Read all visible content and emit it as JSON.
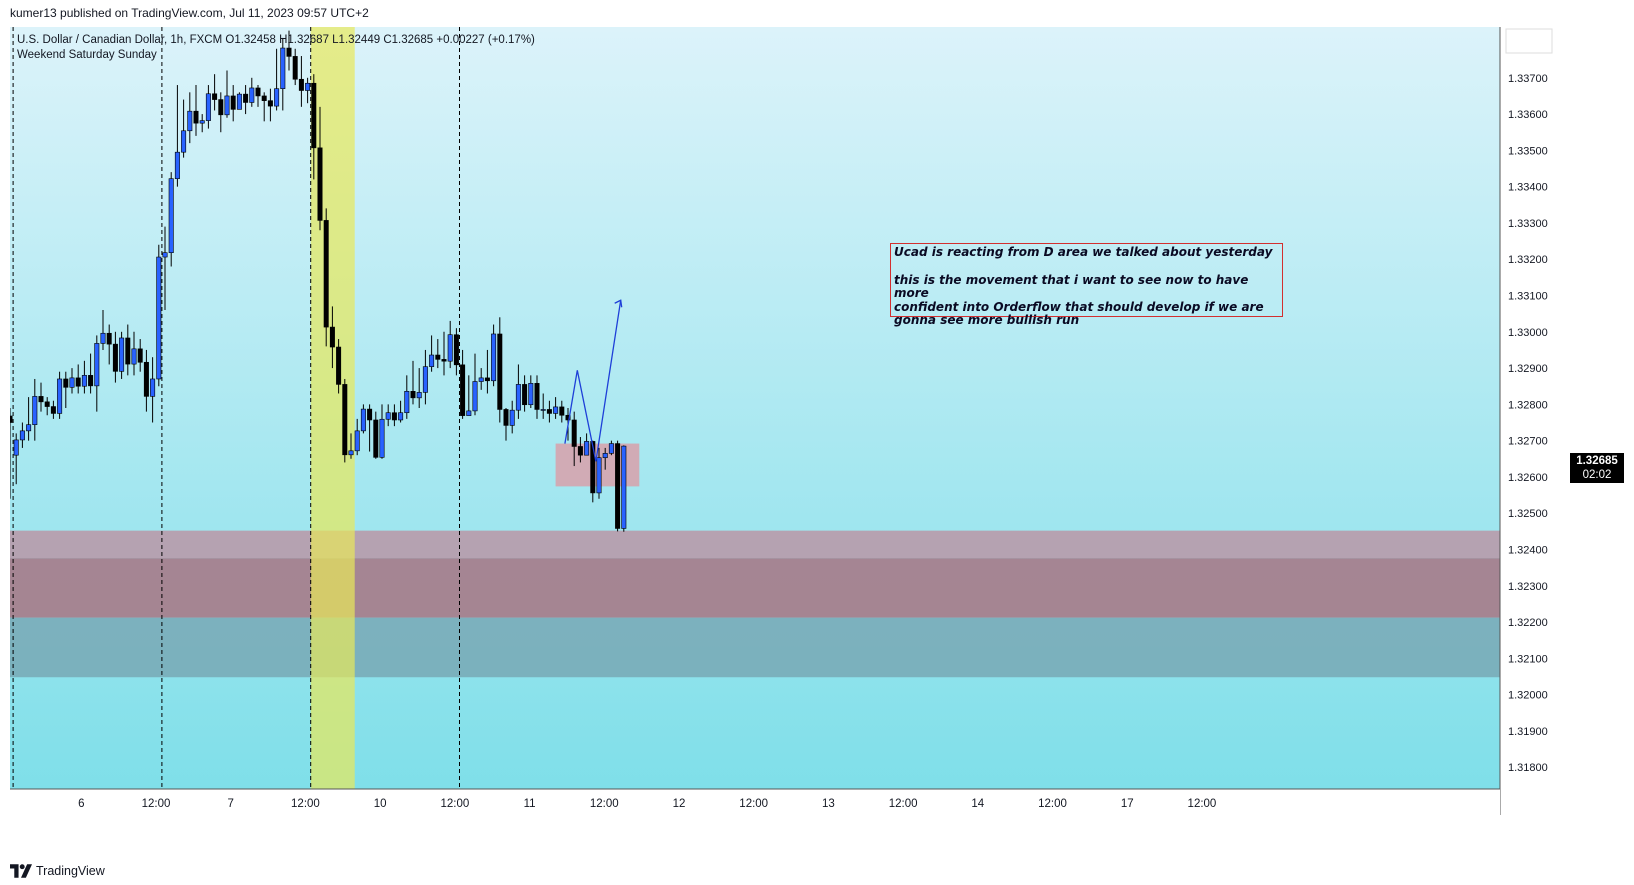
{
  "header": {
    "published": "kumer13 published on TradingView.com, Jul 11, 2023 09:57 UTC+2"
  },
  "legend": {
    "symbol": "U.S. Dollar / Canadian Dollar, 1h, FXCM",
    "ohlc": "O1.32458  H1.32687  L1.32449  C1.32685",
    "change": "+0.00227 (+0.17%)",
    "indicator": "Weekend Saturday Sunday"
  },
  "annotation": {
    "line1": "Ucad is reacting from D area we talked about yesterday",
    "line2": "this is the movement that i want to see now to have more",
    "line3": "confident into Orderflow that should develop if we are",
    "line4": "gonna see more bullish run"
  },
  "price_tag": {
    "price": "1.32685",
    "countdown": "02:02"
  },
  "footer": {
    "brand": "TradingView"
  },
  "colors": {
    "bull": "#2962ff",
    "bear": "#000000",
    "background_top": "#dcf3fa",
    "background_bottom": "#7fdfe9",
    "weekend_highlight": "#e8e85a",
    "zone_upper": "#b89aaa",
    "zone_middle": "#a5808d",
    "zone_lower": "#78a8b5",
    "small_box": "#d8a0aa",
    "projection": "#1e3fd8",
    "annotation_border": "#d32f2f"
  },
  "chart_data": {
    "type": "candlestick",
    "instrument": "U.S. Dollar / Canadian Dollar",
    "timeframe": "1h",
    "ylim": [
      1.3174,
      1.3384
    ],
    "y_ticks": [
      "1.33700",
      "1.33600",
      "1.33500",
      "1.33400",
      "1.33300",
      "1.33200",
      "1.33100",
      "1.33000",
      "1.32900",
      "1.32800",
      "1.32700",
      "1.32600",
      "1.32500",
      "1.32400",
      "1.32300",
      "1.32200",
      "1.32100",
      "1.32000",
      "1.31900",
      "1.31800"
    ],
    "x_ticks": [
      "6",
      "12:00",
      "7",
      "12:00",
      "10",
      "12:00",
      "11",
      "12:00",
      "12",
      "12:00",
      "13",
      "12:00",
      "14",
      "12:00",
      "17",
      "12:00"
    ],
    "session_breaks": [
      0.5,
      24.5,
      48.5,
      72.5
    ],
    "weekend_band": [
      48.5,
      55.6
    ],
    "zones": [
      {
        "name": "upper",
        "from": 1.32376,
        "to": 1.32452
      },
      {
        "name": "middle",
        "from": 1.32212,
        "to": 1.32376
      },
      {
        "name": "lower",
        "from": 1.32048,
        "to": 1.32212
      },
      {
        "name": "target-box",
        "from": 1.32574,
        "to": 1.32692,
        "x_from": 88,
        "x_to": 101.5
      }
    ],
    "projection_path": [
      [
        89.5,
        1.32692
      ],
      [
        91.5,
        1.32894
      ],
      [
        94.5,
        1.32643
      ],
      [
        98.5,
        1.33087
      ]
    ],
    "candles": [
      [
        1.32768,
        1.3275,
        1.3279,
        1.3254
      ],
      [
        1.3266,
        1.32702,
        1.3272,
        1.3258
      ],
      [
        1.32702,
        1.32727,
        1.3275,
        1.3268
      ],
      [
        1.32727,
        1.32744,
        1.3282,
        1.327
      ],
      [
        1.32744,
        1.32822,
        1.3287,
        1.327
      ],
      [
        1.32822,
        1.32807,
        1.3286,
        1.3278
      ],
      [
        1.32807,
        1.32794,
        1.3282,
        1.3277
      ],
      [
        1.32794,
        1.32775,
        1.3281,
        1.3276
      ],
      [
        1.32775,
        1.3287,
        1.3289,
        1.3276
      ],
      [
        1.3287,
        1.32847,
        1.3289,
        1.3279
      ],
      [
        1.32847,
        1.32873,
        1.329,
        1.3283
      ],
      [
        1.32873,
        1.3285,
        1.3291,
        1.3283
      ],
      [
        1.3285,
        1.3288,
        1.3292,
        1.3283
      ],
      [
        1.3288,
        1.32851,
        1.3294,
        1.3283
      ],
      [
        1.32851,
        1.32968,
        1.3299,
        1.3278
      ],
      [
        1.32968,
        1.32996,
        1.3306,
        1.3295
      ],
      [
        1.32996,
        1.32966,
        1.3302,
        1.3291
      ],
      [
        1.32966,
        1.32891,
        1.33,
        1.3286
      ],
      [
        1.32891,
        1.32983,
        1.33,
        1.3287
      ],
      [
        1.32983,
        1.32911,
        1.3302,
        1.3288
      ],
      [
        1.32911,
        1.32953,
        1.33,
        1.3288
      ],
      [
        1.32953,
        1.32916,
        1.3298,
        1.3289
      ],
      [
        1.32916,
        1.32822,
        1.3295,
        1.3278
      ],
      [
        1.32822,
        1.3287,
        1.3293,
        1.3275
      ],
      [
        1.3287,
        1.33206,
        1.3324,
        1.3285
      ],
      [
        1.33206,
        1.33218,
        1.3329,
        1.3306
      ],
      [
        1.33218,
        1.33422,
        1.3344,
        1.3318
      ],
      [
        1.33422,
        1.33495,
        1.3368,
        1.334
      ],
      [
        1.33495,
        1.33554,
        1.3364,
        1.3348
      ],
      [
        1.33554,
        1.33608,
        1.3366,
        1.3352
      ],
      [
        1.33608,
        1.33575,
        1.3368,
        1.3354
      ],
      [
        1.33575,
        1.33582,
        1.336,
        1.3355
      ],
      [
        1.33582,
        1.33656,
        1.3368,
        1.3356
      ],
      [
        1.33656,
        1.3364,
        1.3371,
        1.3361
      ],
      [
        1.3364,
        1.33598,
        1.3366,
        1.3355
      ],
      [
        1.33598,
        1.3365,
        1.3372,
        1.3359
      ],
      [
        1.3365,
        1.33613,
        1.3368,
        1.3358
      ],
      [
        1.33613,
        1.33655,
        1.3366,
        1.3363
      ],
      [
        1.33655,
        1.33632,
        1.3368,
        1.336
      ],
      [
        1.33632,
        1.33672,
        1.337,
        1.3362
      ],
      [
        1.33672,
        1.3365,
        1.3368,
        1.3362
      ],
      [
        1.3365,
        1.33637,
        1.3366,
        1.3358
      ],
      [
        1.33637,
        1.33622,
        1.3367,
        1.3358
      ],
      [
        1.33622,
        1.3367,
        1.3378,
        1.3361
      ],
      [
        1.3367,
        1.33782,
        1.3381,
        1.3361
      ],
      [
        1.33782,
        1.33759,
        1.3383,
        1.3372
      ],
      [
        1.33759,
        1.33696,
        1.3378,
        1.3368
      ],
      [
        1.33696,
        1.33665,
        1.3376,
        1.3362
      ],
      [
        1.33665,
        1.33685,
        1.337,
        1.3363
      ],
      [
        1.33685,
        1.33507,
        1.3371,
        1.3342
      ],
      [
        1.33507,
        1.33307,
        1.3362,
        1.3328
      ],
      [
        1.33307,
        1.33013,
        1.3334,
        1.3296
      ],
      [
        1.33013,
        1.32958,
        1.3307,
        1.329
      ],
      [
        1.32958,
        1.32855,
        1.3298,
        1.3283
      ],
      [
        1.32855,
        1.32661,
        1.3287,
        1.3264
      ],
      [
        1.32661,
        1.32672,
        1.3272,
        1.3265
      ],
      [
        1.32672,
        1.32727,
        1.3276,
        1.3266
      ],
      [
        1.32727,
        1.32787,
        1.328,
        1.3272
      ],
      [
        1.32787,
        1.32757,
        1.328,
        1.3267
      ],
      [
        1.32757,
        1.32654,
        1.3278,
        1.3265
      ],
      [
        1.32654,
        1.32759,
        1.328,
        1.3265
      ],
      [
        1.32759,
        1.32777,
        1.328,
        1.3274
      ],
      [
        1.32777,
        1.32757,
        1.328,
        1.3274
      ],
      [
        1.32757,
        1.32777,
        1.3281,
        1.3275
      ],
      [
        1.32777,
        1.32836,
        1.3288,
        1.3276
      ],
      [
        1.32836,
        1.32818,
        1.3292,
        1.328
      ],
      [
        1.32818,
        1.32833,
        1.329,
        1.3279
      ],
      [
        1.32833,
        1.32904,
        1.3295,
        1.328
      ],
      [
        1.32904,
        1.32936,
        1.3299,
        1.3289
      ],
      [
        1.32936,
        1.32924,
        1.3298,
        1.329
      ],
      [
        1.32924,
        1.32919,
        1.33,
        1.3288
      ],
      [
        1.32919,
        1.32992,
        1.3303,
        1.329
      ],
      [
        1.32992,
        1.32909,
        1.3301,
        1.3288
      ],
      [
        1.32909,
        1.32769,
        1.3295,
        1.3276
      ],
      [
        1.32769,
        1.32782,
        1.3288,
        1.3277
      ],
      [
        1.32782,
        1.32863,
        1.3294,
        1.3277
      ],
      [
        1.32863,
        1.32873,
        1.329,
        1.3284
      ],
      [
        1.32873,
        1.32865,
        1.3295,
        1.3283
      ],
      [
        1.32865,
        1.32994,
        1.3302,
        1.3285
      ],
      [
        1.32994,
        1.32786,
        1.3304,
        1.3275
      ],
      [
        1.32786,
        1.32742,
        1.3279,
        1.327
      ],
      [
        1.32742,
        1.32784,
        1.3281,
        1.3272
      ],
      [
        1.32784,
        1.32855,
        1.3291,
        1.3276
      ],
      [
        1.32855,
        1.32799,
        1.3288,
        1.3278
      ],
      [
        1.32799,
        1.32858,
        1.3288,
        1.3279
      ],
      [
        1.32858,
        1.32786,
        1.3288,
        1.3276
      ],
      [
        1.32786,
        1.32786,
        1.3283,
        1.3276
      ],
      [
        1.32786,
        1.32775,
        1.3281,
        1.3275
      ],
      [
        1.32775,
        1.32793,
        1.3282,
        1.3276
      ],
      [
        1.32793,
        1.3277,
        1.3281,
        1.3275
      ],
      [
        1.3277,
        1.32757,
        1.3279,
        1.327
      ],
      [
        1.32757,
        1.32684,
        1.3278,
        1.3263
      ],
      [
        1.32684,
        1.3266,
        1.3271,
        1.3264
      ],
      [
        1.3266,
        1.32698,
        1.3272,
        1.3266
      ],
      [
        1.32698,
        1.32556,
        1.327,
        1.3253
      ],
      [
        1.32556,
        1.32653,
        1.3268,
        1.3254
      ],
      [
        1.32653,
        1.32665,
        1.3268,
        1.3262
      ],
      [
        1.32665,
        1.32692,
        1.327,
        1.3266
      ],
      [
        1.32692,
        1.32458,
        1.327,
        1.3245
      ],
      [
        1.32458,
        1.32685,
        1.32687,
        1.32449
      ]
    ]
  }
}
